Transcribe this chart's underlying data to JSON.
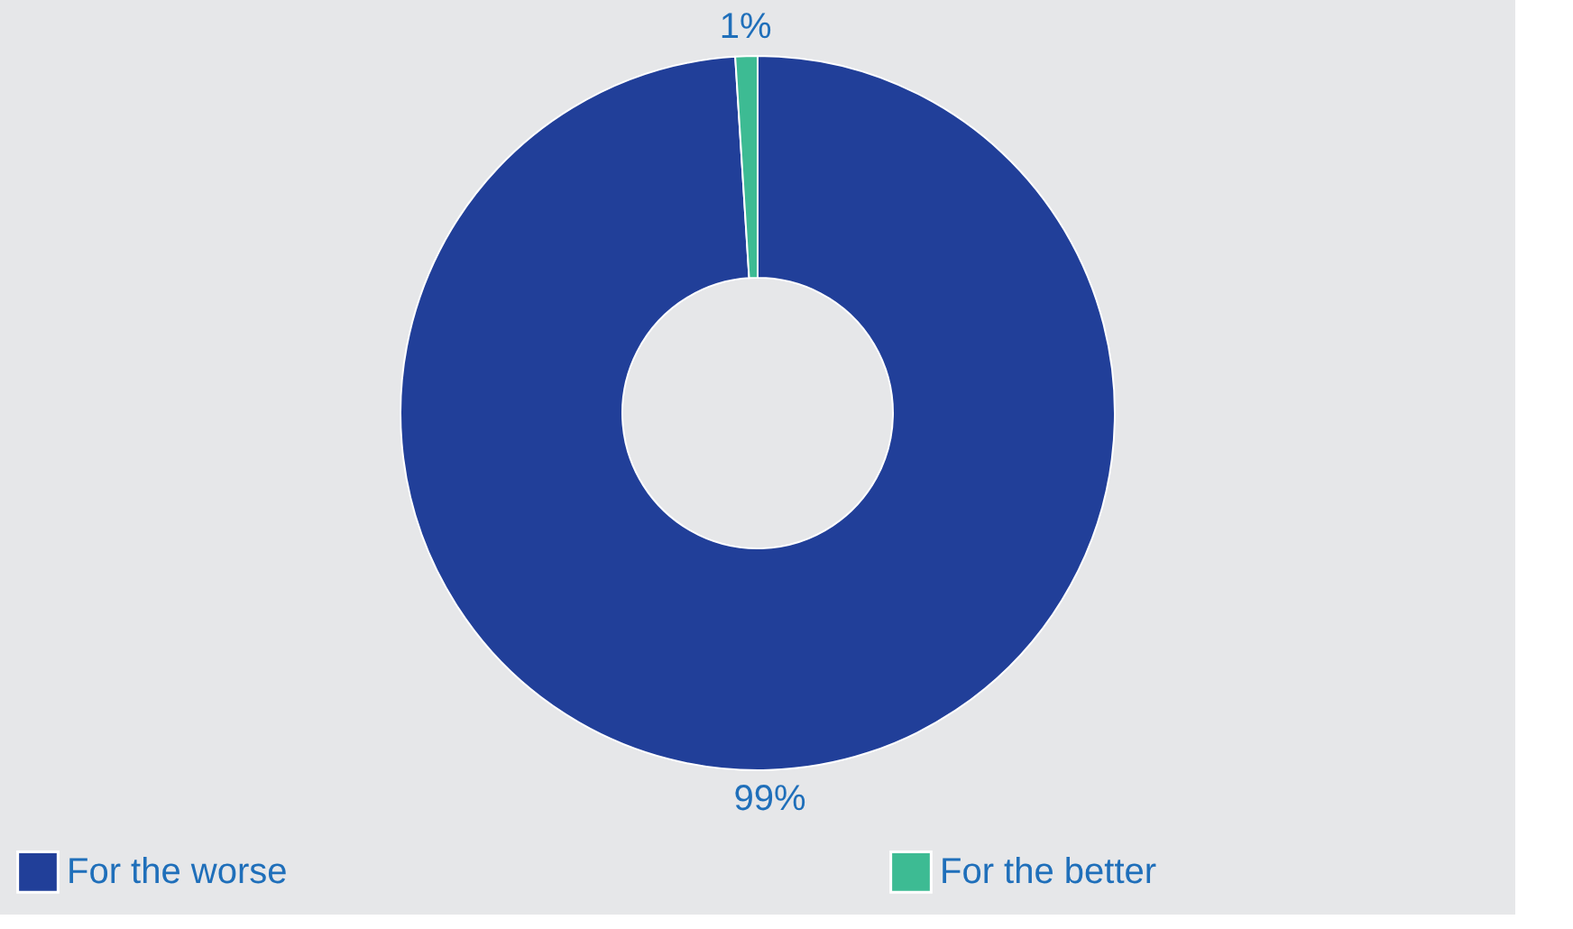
{
  "chart_data": {
    "type": "donut",
    "categories": [
      "For the worse",
      "For the better"
    ],
    "values": [
      99,
      1
    ],
    "colors": [
      "#213f99",
      "#3dbb93"
    ],
    "value_labels": [
      "99%",
      "1%"
    ],
    "legend": "bottom"
  }
}
